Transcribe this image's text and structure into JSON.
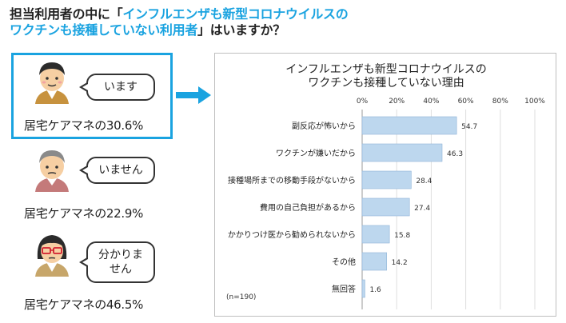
{
  "headline": {
    "part1": "担当利用者の中に「",
    "highlight1": "インフルエンザも新型コロナウイルスの",
    "highlight2": "ワクチンも接種していない利用者",
    "part2": "」はいますか？"
  },
  "responses": [
    {
      "bubble": "います",
      "label": "居宅ケアマネの30.6%",
      "value": 30.6
    },
    {
      "bubble": "いません",
      "label": "居宅ケアマネの22.9%",
      "value": 22.9
    },
    {
      "bubble": "分かりません",
      "label": "居宅ケアマネの46.5%",
      "value": 46.5
    }
  ],
  "colors": {
    "accent": "#1aa3e0",
    "bar_fill": "#bdd7ee",
    "bar_stroke": "#8fb4d8"
  },
  "chart_data": {
    "type": "bar",
    "orientation": "horizontal",
    "title_line1": "インフルエンザも新型コロナウイルスの",
    "title_line2": "ワクチンも接種していない理由",
    "categories": [
      "副反応が怖いから",
      "ワクチンが嫌いだから",
      "接種場所までの移動手段がないから",
      "費用の自己負担があるから",
      "かかりつけ医から勧められないから",
      "その他",
      "無回答"
    ],
    "values": [
      54.7,
      46.3,
      28.4,
      27.4,
      15.8,
      14.2,
      1.6
    ],
    "value_labels": [
      "54.7",
      "46.3",
      "28.4",
      "27.4",
      "15.8",
      "14.2",
      "1.6"
    ],
    "xlim": [
      0,
      100
    ],
    "ticks": [
      0,
      20,
      40,
      60,
      80,
      100
    ],
    "tick_labels": [
      "0%",
      "20%",
      "40%",
      "60%",
      "80%",
      "100%"
    ],
    "grid": true,
    "note": "(n=190)"
  }
}
